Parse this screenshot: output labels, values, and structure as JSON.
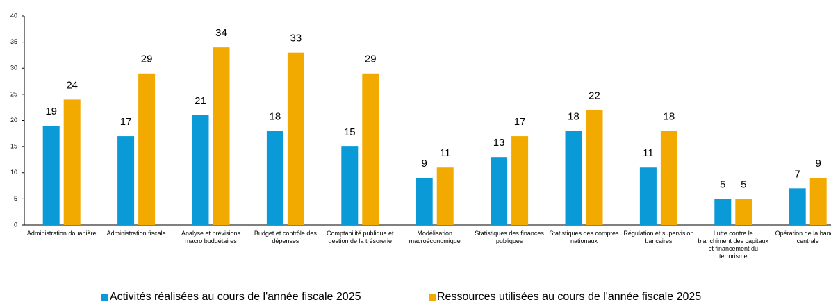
{
  "chart_data": {
    "type": "bar",
    "categories": [
      "Administration douanière",
      "Administration fiscale",
      "Analyse et prévisions macro budgétaires",
      "Budget et contrôle des dépenses",
      "Comptabilité publique et gestion de la trésorerie",
      "Modélisation macroéconomique",
      "Statistiques des finances publiques",
      "Statistiques des comptes nationaux",
      "Régulation et supervision bancaires",
      "Lutte contre le blanchiment des capitaux et financement du terrorisme",
      "Opération de la banque centrale"
    ],
    "series": [
      {
        "name": "Activités réalisées au cours de l'année fiscale 2025",
        "color": "#0b9ad8",
        "values": [
          19,
          17,
          21,
          18,
          15,
          9,
          13,
          18,
          11,
          5,
          7
        ]
      },
      {
        "name": "Ressources utilisées au cours de l'année fiscale 2025",
        "color": "#f2aa00",
        "values": [
          24,
          29,
          34,
          33,
          29,
          11,
          17,
          22,
          18,
          5,
          9
        ]
      }
    ],
    "ylim": [
      0,
      40
    ],
    "yticks": [
      0,
      5,
      10,
      15,
      20,
      25,
      30,
      35,
      40
    ],
    "grid": false,
    "legend": "bottom"
  }
}
